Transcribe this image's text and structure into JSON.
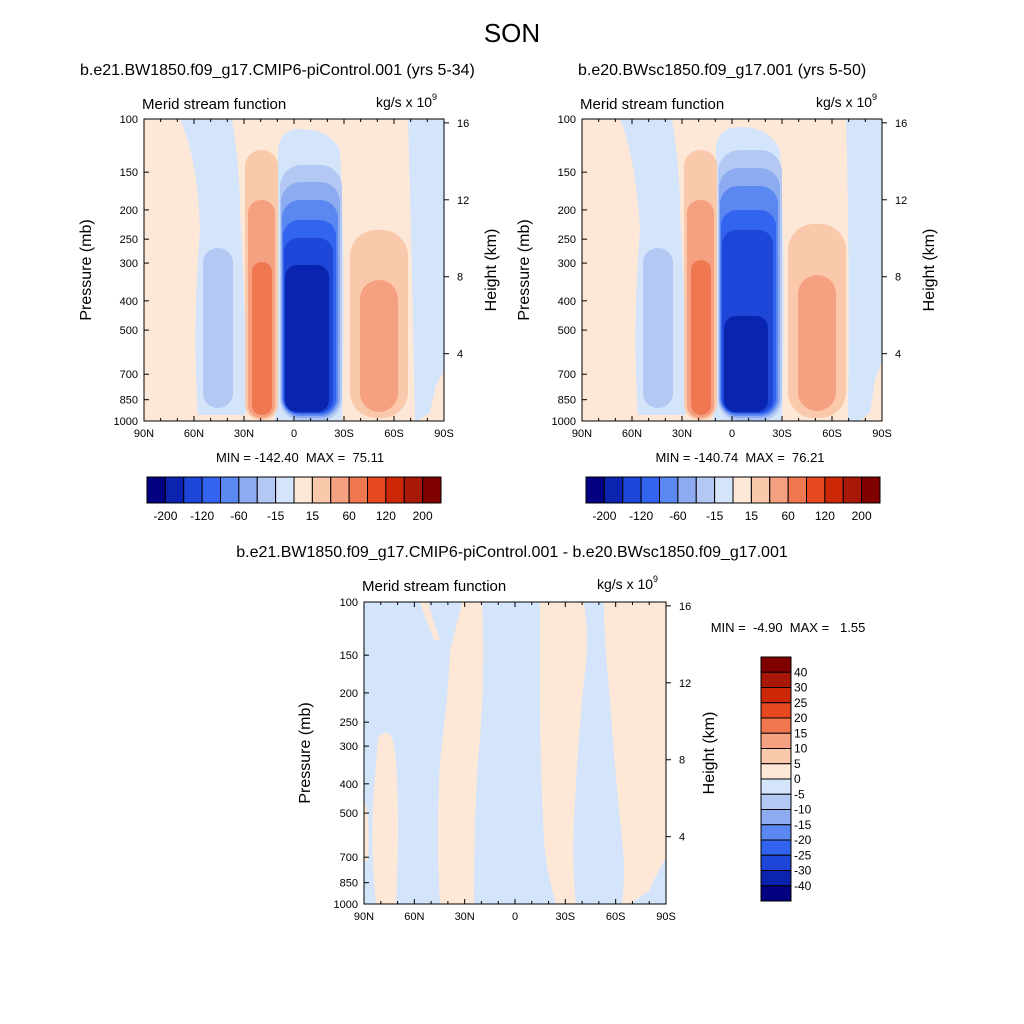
{
  "figure": {
    "season": "SON",
    "left_title": "b.e21.BW1850.f09_g17.CMIP6-piControl.001 (yrs 5-34)",
    "right_title": "b.e20.BWsc1850.f09_g17.001 (yrs 5-50)",
    "diff_title": "b.e21.BW1850.f09_g17.CMIP6-piControl.001 - b.e20.BWsc1850.f09_g17.001",
    "units_base": "kg/s x 10",
    "units_exp": "9"
  },
  "colors": {
    "full_scale": [
      "#000080",
      "#0a24b0",
      "#1e46d8",
      "#3264f0",
      "#5a87f0",
      "#8cabf0",
      "#b4c8f4",
      "#d4e4fa",
      "#fde8d8",
      "#fac8aa",
      "#f5a080",
      "#f07850",
      "#e84820",
      "#cc2808",
      "#a81808",
      "#800000"
    ],
    "diff_scale": [
      "#000080",
      "#0a24b0",
      "#1e46d8",
      "#3264f0",
      "#5a87f0",
      "#8cabf0",
      "#b4c8f4",
      "#d4e4fa",
      "#fde8d8",
      "#fac8aa",
      "#f5a080",
      "#f07850",
      "#e84820",
      "#cc2808",
      "#a81808",
      "#800000"
    ]
  },
  "chart_data": [
    {
      "type": "heatmap",
      "id": "left",
      "title": "Merid stream function",
      "units": "kg/s x 10^9",
      "xlabel": "",
      "ylabel": "Pressure (mb)",
      "y2label": "Height (km)",
      "xticks": [
        "90N",
        "60N",
        "30N",
        "0",
        "30S",
        "60S",
        "90S"
      ],
      "yticks": [
        "100",
        "150",
        "200",
        "250",
        "300",
        "400",
        "500",
        "700",
        "850",
        "1000"
      ],
      "y2ticks": [
        "16",
        "12",
        "8",
        "4"
      ],
      "min": -142.4,
      "max": 75.11,
      "stats_label": "MIN = -142.40  MAX =  75.11",
      "colorbar_labels": [
        "-200",
        "-120",
        "-60",
        "-15",
        "15",
        "60",
        "120",
        "200"
      ],
      "cells": [
        {
          "lat": 60,
          "p_top": 100,
          "p_bot": 1000,
          "level": 1
        },
        {
          "lat": 45,
          "p_top": 280,
          "p_bot": 850,
          "level": -2
        },
        {
          "lat": 18,
          "p_top": 150,
          "p_bot": 1000,
          "level": 4
        },
        {
          "lat": 0,
          "p_top": 100,
          "p_bot": 1000,
          "level": -6
        },
        {
          "lat": -45,
          "p_top": 250,
          "p_bot": 1000,
          "level": 3
        }
      ]
    },
    {
      "type": "heatmap",
      "id": "right",
      "title": "Merid stream function",
      "units": "kg/s x 10^9",
      "xlabel": "",
      "ylabel": "Pressure (mb)",
      "y2label": "Height (km)",
      "xticks": [
        "90N",
        "60N",
        "30N",
        "0",
        "30S",
        "60S",
        "90S"
      ],
      "yticks": [
        "100",
        "150",
        "200",
        "250",
        "300",
        "400",
        "500",
        "700",
        "850",
        "1000"
      ],
      "y2ticks": [
        "16",
        "12",
        "8",
        "4"
      ],
      "min": -140.74,
      "max": 76.21,
      "stats_label": "MIN = -140.74  MAX =  76.21",
      "colorbar_labels": [
        "-200",
        "-120",
        "-60",
        "-15",
        "15",
        "60",
        "120",
        "200"
      ],
      "cells": [
        {
          "lat": 60,
          "p_top": 100,
          "p_bot": 1000,
          "level": 1
        },
        {
          "lat": 45,
          "p_top": 270,
          "p_bot": 850,
          "level": -2
        },
        {
          "lat": 18,
          "p_top": 150,
          "p_bot": 1000,
          "level": 4
        },
        {
          "lat": 0,
          "p_top": 100,
          "p_bot": 1000,
          "level": -6
        },
        {
          "lat": -45,
          "p_top": 240,
          "p_bot": 1000,
          "level": 3
        }
      ]
    },
    {
      "type": "heatmap",
      "id": "diff",
      "title": "Merid stream function",
      "units": "kg/s x 10^9",
      "xlabel": "",
      "ylabel": "Pressure (mb)",
      "y2label": "Height (km)",
      "xticks": [
        "90N",
        "60N",
        "30N",
        "0",
        "30S",
        "60S",
        "90S"
      ],
      "yticks": [
        "100",
        "150",
        "200",
        "250",
        "300",
        "400",
        "500",
        "700",
        "850",
        "1000"
      ],
      "y2ticks": [
        "16",
        "12",
        "8",
        "4"
      ],
      "min": -4.9,
      "max": 1.55,
      "stats_label": "MIN =  -4.90  MAX =   1.55",
      "colorbar_labels": [
        "40",
        "30",
        "25",
        "20",
        "15",
        "10",
        "5",
        "0",
        "-5",
        "-10",
        "-15",
        "-20",
        "-25",
        "-30",
        "-40"
      ],
      "cells": [
        {
          "lat": 75,
          "p_top": 100,
          "p_bot": 1000,
          "level": -1
        },
        {
          "lat": 50,
          "p_top": 280,
          "p_bot": 1000,
          "level": 1
        },
        {
          "lat": 30,
          "p_top": 100,
          "p_bot": 700,
          "level": 1
        },
        {
          "lat": 0,
          "p_top": 100,
          "p_bot": 1000,
          "level": -1
        },
        {
          "lat": -30,
          "p_top": 100,
          "p_bot": 1000,
          "level": 1
        },
        {
          "lat": -60,
          "p_top": 100,
          "p_bot": 1000,
          "level": 1
        }
      ]
    }
  ]
}
